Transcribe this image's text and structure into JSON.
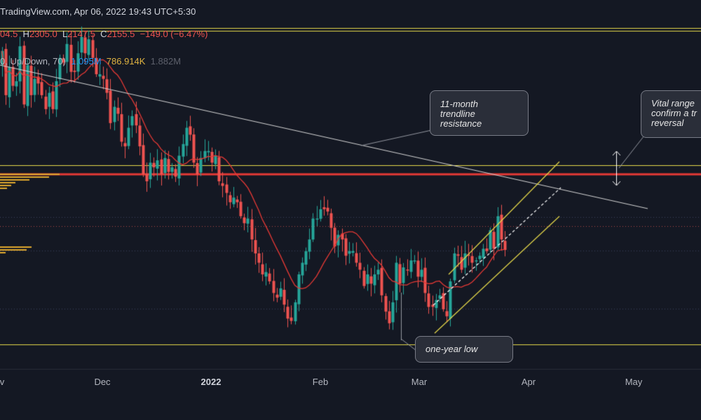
{
  "header": {
    "source_line": "TradingView.com, Apr 06, 2022 19:43 UTC+5:30",
    "ohlc_open_fragment": "04.5",
    "ohlc_high_label": "H",
    "ohlc_high": "2305.0",
    "ohlc_low_label": "L",
    "ohlc_low": "2147.5",
    "ohlc_close_label": "C",
    "ohlc_close": "2155.5",
    "ohlc_change": "−149.0 (−6.47%)",
    "indicator_name": "0, Up/Down, 70)",
    "vol_up": "1.095M",
    "vol_down": "786.914K",
    "vol_total": "1.882M"
  },
  "annotations": {
    "trendline_note": [
      "11-month",
      "trendline",
      "resistance"
    ],
    "low_note": "one-year low",
    "range_note": [
      "Vital range",
      "confirm a tr",
      "reversal"
    ]
  },
  "colors": {
    "background": "#141823",
    "up_candle": "#26a69a",
    "down_candle": "#ef5350",
    "moving_average": "#e53935",
    "horizontal_levels": "#e6d94a",
    "key_level": "#e53935",
    "trendline": "#d6d6d6",
    "volume_profile": "#e0a82e"
  },
  "chart_data": {
    "type": "candlestick",
    "x_tick_labels": [
      "v",
      "Dec",
      "2022",
      "Feb",
      "Mar",
      "Apr",
      "May"
    ],
    "daily_closes": [
      3010,
      2820,
      2940,
      2860,
      2880,
      3030,
      2780,
      2950,
      2820,
      2890,
      2870,
      2820,
      2760,
      2830,
      2760,
      2880,
      2980,
      2960,
      3040,
      2920,
      2920,
      3000,
      3070,
      3000,
      3060,
      2980,
      2910,
      2910,
      2890,
      2830,
      2700,
      2770,
      2740,
      2620,
      2600,
      2680,
      2730,
      2690,
      2600,
      2480,
      2450,
      2530,
      2510,
      2540,
      2480,
      2550,
      2490,
      2510,
      2470,
      2560,
      2610,
      2680,
      2650,
      2530,
      2480,
      2550,
      2580,
      2580,
      2530,
      2560,
      2450,
      2430,
      2400,
      2360,
      2380,
      2360,
      2300,
      2270,
      2290,
      2200,
      2140,
      2100,
      2050,
      2060,
      2020,
      1970,
      1950,
      1990,
      1920,
      1860,
      1850,
      1930,
      2050,
      2100,
      2150,
      2200,
      2290,
      2290,
      2330,
      2330,
      2320,
      2250,
      2170,
      2220,
      2200,
      2130,
      2150,
      2150,
      2100,
      2070,
      2000,
      2050,
      2010,
      2050,
      2070,
      1960,
      1890,
      1840,
      1930,
      2100,
      2010,
      2080,
      2070,
      2110,
      2110,
      2040,
      2070,
      1970,
      1910,
      1910,
      1940,
      1960,
      1900,
      1870,
      2020,
      2140,
      2130,
      2070,
      2140,
      2130,
      2100,
      2110,
      2130,
      2160,
      2150,
      2240,
      2160,
      2300,
      2200,
      2155
    ],
    "moving_average": "single red MA (approx. 20-period) following price",
    "horizontal_levels": [
      3110,
      2520,
      2480,
      1750
    ],
    "key_resistance_level": 2480,
    "trendline": "descending line from November high through early April",
    "channel": "ascending channel from March low to April high",
    "one_year_low": 1750
  }
}
